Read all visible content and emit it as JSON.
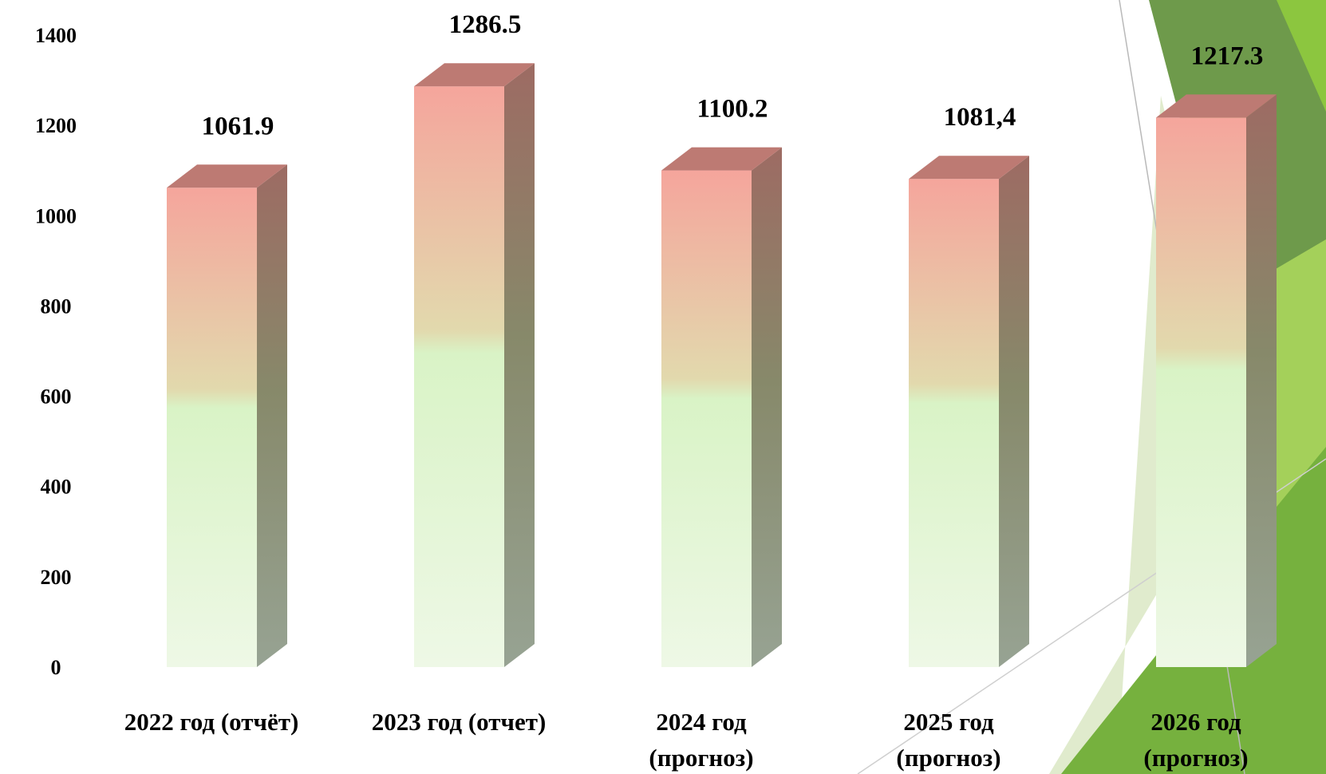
{
  "chart_data": {
    "type": "bar",
    "style": "3d-column",
    "categories": [
      [
        "2022 год (отчёт)"
      ],
      [
        "2023 год (отчет)"
      ],
      [
        "2024 год",
        "(прогноз)"
      ],
      [
        "2025 год",
        "(прогноз)"
      ],
      [
        "2026 год",
        "(прогноз)"
      ]
    ],
    "values": [
      1061.9,
      1286.5,
      1100.2,
      1081.4,
      1217.3
    ],
    "data_labels": [
      "1061.9",
      "1286.5",
      "1100.2",
      "1081,4",
      "1217.3"
    ],
    "title": "",
    "xlabel": "",
    "ylabel": "",
    "ylim": [
      0,
      1400
    ],
    "yticks": [
      0,
      200,
      400,
      600,
      800,
      1000,
      1200,
      1400
    ],
    "grid": false,
    "legend": "none",
    "colors": {
      "bar_top": "#f5a59c",
      "bar_mid": "#d9f3c6",
      "bar_bottom": "#eef8e6",
      "side_top": "#9d6b63",
      "side_bottom": "#97a393",
      "cap": "#bd7a73",
      "deco_dark_green": "#6e9a4b",
      "deco_green": "#76b13e",
      "deco_light_green": "#a4d05a",
      "deco_pale_green": "#dbe8c4"
    }
  }
}
